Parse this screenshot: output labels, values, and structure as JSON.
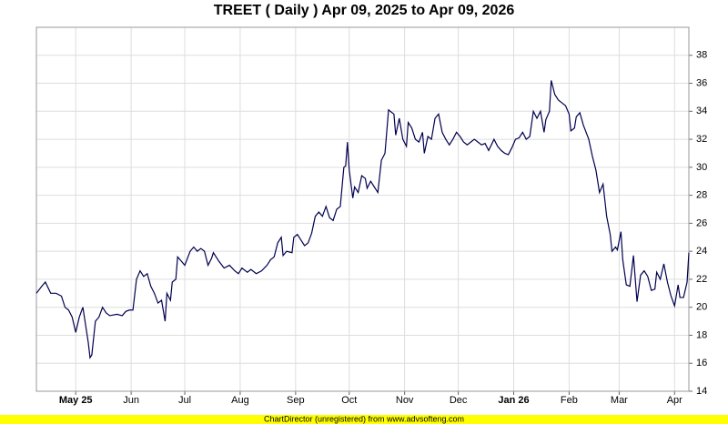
{
  "chart_data": {
    "type": "line",
    "title": "TREET ( Daily ) Apr 09, 2025 to Apr 09, 2026",
    "footer": "ChartDirector (unregistered) from www.advsofteng.com",
    "color": "#000050",
    "x": [
      "2025-04-09",
      "2025-04-12",
      "2025-04-14",
      "2025-04-17",
      "2025-04-20",
      "2025-04-23",
      "2025-04-25",
      "2025-04-27",
      "2025-04-29",
      "2025-05-01",
      "2025-05-03",
      "2025-05-05",
      "2025-05-08",
      "2025-05-09",
      "2025-05-10",
      "2025-05-12",
      "2025-05-14",
      "2025-05-16",
      "2025-05-18",
      "2025-05-20",
      "2025-05-24",
      "2025-05-27",
      "2025-05-29",
      "2025-05-31",
      "2025-06-02",
      "2025-06-04",
      "2025-06-06",
      "2025-06-08",
      "2025-06-10",
      "2025-06-12",
      "2025-06-14",
      "2025-06-16",
      "2025-06-18",
      "2025-06-20",
      "2025-06-21",
      "2025-06-23",
      "2025-06-24",
      "2025-06-26",
      "2025-06-27",
      "2025-06-29",
      "2025-07-01",
      "2025-07-04",
      "2025-07-06",
      "2025-07-08",
      "2025-07-10",
      "2025-07-12",
      "2025-07-14",
      "2025-07-16",
      "2025-07-17",
      "2025-07-20",
      "2025-07-23",
      "2025-07-26",
      "2025-07-29",
      "2025-07-31",
      "2025-08-02",
      "2025-08-05",
      "2025-08-07",
      "2025-08-10",
      "2025-08-13",
      "2025-08-16",
      "2025-08-18",
      "2025-08-20",
      "2025-08-22",
      "2025-08-24",
      "2025-08-25",
      "2025-08-27",
      "2025-08-30",
      "2025-08-31",
      "2025-09-02",
      "2025-09-04",
      "2025-09-06",
      "2025-09-08",
      "2025-09-10",
      "2025-09-12",
      "2025-09-14",
      "2025-09-16",
      "2025-09-18",
      "2025-09-20",
      "2025-09-22",
      "2025-09-24",
      "2025-09-26",
      "2025-09-28",
      "2025-09-29",
      "2025-09-30",
      "2025-10-01",
      "2025-10-03",
      "2025-10-04",
      "2025-10-06",
      "2025-10-08",
      "2025-10-10",
      "2025-10-11",
      "2025-10-13",
      "2025-10-15",
      "2025-10-17",
      "2025-10-19",
      "2025-10-21",
      "2025-10-23",
      "2025-10-26",
      "2025-10-27",
      "2025-10-29",
      "2025-10-31",
      "2025-11-02",
      "2025-11-03",
      "2025-11-05",
      "2025-11-07",
      "2025-11-09",
      "2025-11-11",
      "2025-11-12",
      "2025-11-14",
      "2025-11-16",
      "2025-11-18",
      "2025-11-20",
      "2025-11-22",
      "2025-11-24",
      "2025-11-26",
      "2025-11-28",
      "2025-11-30",
      "2025-12-02",
      "2025-12-04",
      "2025-12-06",
      "2025-12-08",
      "2025-12-10",
      "2025-12-12",
      "2025-12-14",
      "2025-12-16",
      "2025-12-18",
      "2025-12-21",
      "2025-12-23",
      "2025-12-25",
      "2025-12-27",
      "2025-12-29",
      "2025-12-31",
      "2026-01-02",
      "2026-01-04",
      "2026-01-06",
      "2026-01-08",
      "2026-01-10",
      "2026-01-12",
      "2026-01-14",
      "2026-01-16",
      "2026-01-18",
      "2026-01-19",
      "2026-01-21",
      "2026-01-22",
      "2026-01-24",
      "2026-01-26",
      "2026-01-28",
      "2026-01-30",
      "2026-02-01",
      "2026-02-02",
      "2026-02-04",
      "2026-02-05",
      "2026-02-07",
      "2026-02-09",
      "2026-02-12",
      "2026-02-14",
      "2026-02-16",
      "2026-02-18",
      "2026-02-20",
      "2026-02-22",
      "2026-02-24",
      "2026-02-25",
      "2026-02-27",
      "2026-02-28",
      "2026-03-02",
      "2026-03-03",
      "2026-03-05",
      "2026-03-07",
      "2026-03-09",
      "2026-03-11",
      "2026-03-13",
      "2026-03-15",
      "2026-03-17",
      "2026-03-19",
      "2026-03-21",
      "2026-03-22",
      "2026-03-24",
      "2026-03-26",
      "2026-03-28",
      "2026-03-30",
      "2026-04-01",
      "2026-04-03",
      "2026-04-04",
      "2026-04-06",
      "2026-04-08",
      "2026-04-09"
    ],
    "values": [
      21.0,
      21.5,
      21.8,
      21.0,
      21.0,
      20.8,
      20.0,
      19.8,
      19.3,
      18.2,
      19.3,
      20.0,
      17.5,
      16.4,
      16.6,
      19.0,
      19.3,
      20.0,
      19.6,
      19.4,
      19.5,
      19.4,
      19.7,
      19.8,
      19.8,
      22.0,
      22.6,
      22.2,
      22.4,
      21.5,
      21.0,
      20.3,
      20.5,
      19.0,
      21.0,
      20.5,
      21.8,
      22.0,
      23.6,
      23.3,
      23.0,
      24.0,
      24.3,
      24.0,
      24.2,
      24.0,
      23.0,
      23.5,
      23.9,
      23.3,
      22.8,
      23.0,
      22.6,
      22.4,
      22.8,
      22.5,
      22.7,
      22.4,
      22.6,
      23.0,
      23.4,
      23.6,
      24.6,
      25.0,
      23.7,
      24.0,
      23.9,
      25.0,
      25.2,
      24.8,
      24.4,
      24.6,
      25.3,
      26.5,
      26.8,
      26.5,
      27.2,
      26.4,
      26.2,
      27.0,
      27.2,
      30.0,
      30.1,
      31.8,
      29.8,
      27.8,
      28.6,
      28.2,
      29.4,
      29.2,
      28.5,
      29.0,
      28.6,
      28.2,
      30.5,
      31.0,
      34.1,
      33.8,
      32.3,
      33.5,
      32.0,
      31.5,
      33.2,
      32.8,
      32.0,
      31.8,
      32.5,
      31.0,
      32.2,
      32.0,
      33.5,
      33.8,
      32.5,
      32.0,
      31.6,
      32.0,
      32.5,
      32.2,
      31.8,
      31.6,
      31.8,
      32.0,
      31.8,
      31.6,
      31.7,
      31.2,
      32.0,
      31.5,
      31.2,
      31.0,
      30.9,
      31.4,
      32.0,
      32.1,
      32.5,
      32.0,
      32.2,
      34.0,
      33.5,
      34.0,
      32.5,
      33.4,
      34.0,
      36.2,
      35.2,
      34.8,
      34.6,
      34.4,
      33.8,
      32.6,
      32.8,
      33.6,
      33.9,
      33.0,
      32.0,
      30.8,
      29.8,
      28.2,
      28.8,
      26.5,
      25.2,
      24.0,
      24.3,
      24.1,
      25.4,
      23.4,
      21.6,
      21.5,
      23.7,
      20.4,
      22.3,
      22.6,
      22.2,
      21.2,
      21.3,
      22.5,
      22.0,
      23.1,
      21.8,
      20.8,
      20.1,
      21.6,
      20.7,
      20.7,
      21.8,
      23.9
    ],
    "xlim": [
      "2025-04-09",
      "2026-04-09"
    ],
    "xticks": [
      {
        "value": "2025-05-01",
        "label": "May 25"
      },
      {
        "value": "2025-06-01",
        "label": "Jun"
      },
      {
        "value": "2025-07-01",
        "label": "Jul"
      },
      {
        "value": "2025-08-01",
        "label": "Aug"
      },
      {
        "value": "2025-09-01",
        "label": "Sep"
      },
      {
        "value": "2025-10-01",
        "label": "Oct"
      },
      {
        "value": "2025-11-01",
        "label": "Nov"
      },
      {
        "value": "2025-12-01",
        "label": "Dec"
      },
      {
        "value": "2026-01-01",
        "label": "Jan 26"
      },
      {
        "value": "2026-02-01",
        "label": "Feb"
      },
      {
        "value": "2026-03-01",
        "label": "Mar"
      },
      {
        "value": "2026-04-01",
        "label": "Apr"
      }
    ],
    "ylim": [
      14,
      40
    ],
    "yticks": [
      14,
      16,
      18,
      20,
      22,
      24,
      26,
      28,
      30,
      32,
      34,
      36,
      38
    ],
    "grid": true
  }
}
